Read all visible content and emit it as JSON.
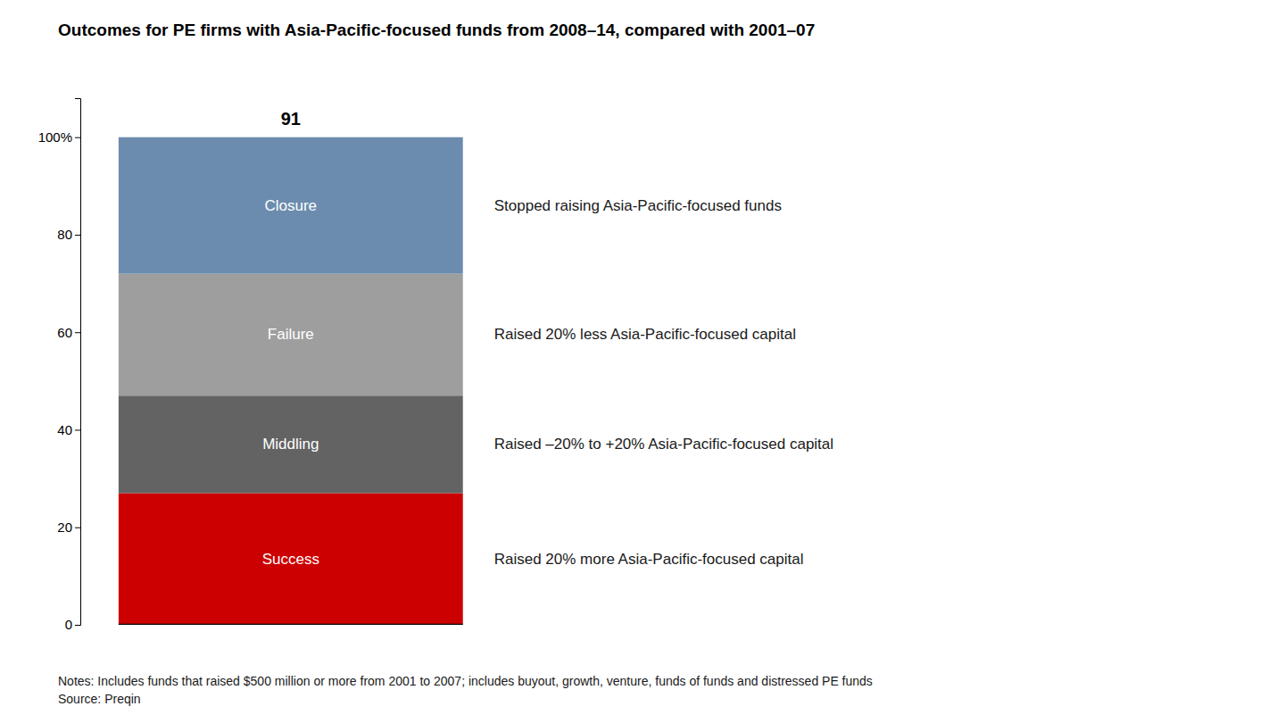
{
  "chart_data": {
    "type": "bar",
    "stacked": true,
    "title": "Outcomes for PE firms with Asia-Pacific-focused funds from 2008–14, compared with 2001–07",
    "n_label": "91",
    "categories": [
      null
    ],
    "series": [
      {
        "name": "Success",
        "color": "#cc0000",
        "values": [
          27
        ]
      },
      {
        "name": "Middling",
        "color": "#636363",
        "values": [
          20
        ]
      },
      {
        "name": "Failure",
        "color": "#9e9e9e",
        "values": [
          25
        ]
      },
      {
        "name": "Closure",
        "color": "#6b8cae",
        "values": [
          28
        ]
      }
    ],
    "annotations": [
      "Raised 20% more Asia-Pacific-focused capital",
      "Raised –20% to +20% Asia-Pacific-focused capital",
      "Raised 20% less Asia-Pacific-focused capital",
      "Stopped raising Asia-Pacific-focused funds"
    ],
    "ylim": [
      0,
      108
    ],
    "yticks": [
      0,
      20,
      40,
      60,
      80,
      {
        "value": 100,
        "label": "100%"
      }
    ],
    "grid": false,
    "tick_labels": "y",
    "notes": [
      "Notes: Includes funds that raised $500 million or more from 2001 to 2007; includes buyout, growth, venture, funds of funds and distressed PE funds",
      "Source: Preqin"
    ]
  }
}
